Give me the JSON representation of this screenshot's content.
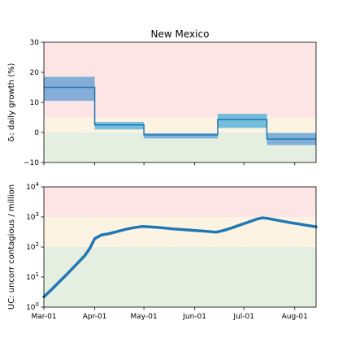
{
  "chart_data": [
    {
      "type": "line",
      "title": "New Mexico",
      "ylabel": "δᵢ: daily growth (%)",
      "ylim": [
        -10,
        30
      ],
      "yticks": [
        -10,
        0,
        10,
        20,
        30
      ],
      "yticklabels": [
        "−10",
        "0",
        "10",
        "20",
        "30"
      ],
      "xlim": [
        0,
        166
      ],
      "xticks": [
        0,
        31,
        61,
        92,
        122,
        153
      ],
      "xticklabels": [
        "Mar-01",
        "Apr-01",
        "May-01",
        "Jun-01",
        "Jul-01",
        "Aug-01"
      ],
      "show_xticklabels": false,
      "background_bands": [
        {
          "from": -10,
          "to": 0,
          "color": "#e5efe1"
        },
        {
          "from": 0,
          "to": 5,
          "color": "#fdf3e3"
        },
        {
          "from": 5,
          "to": 30,
          "color": "#fde5e5"
        }
      ],
      "series": [
        {
          "line_color": "#1f77b4",
          "band_colors": [
            "#6fa4d6",
            "#5ab4d9"
          ],
          "steps": [
            {
              "x0": 0,
              "x1": 31,
              "value": 15,
              "low": 10.5,
              "high": 18.5
            },
            {
              "x0": 31,
              "x1": 61,
              "value": 2.5,
              "low": 1.0,
              "high": 3.5
            },
            {
              "x0": 61,
              "x1": 106,
              "value": -0.8,
              "low": -2.0,
              "high": -0.3
            },
            {
              "x0": 106,
              "x1": 136,
              "value": 4.3,
              "low": 1.5,
              "high": 6.2
            },
            {
              "x0": 136,
              "x1": 166,
              "value": -2.2,
              "low": -4.2,
              "high": -0.2
            }
          ]
        }
      ]
    },
    {
      "type": "line",
      "title": "",
      "ylabel": "UC: uncorr contagious / million",
      "yscale": "log",
      "ylim": [
        1,
        10000
      ],
      "yticks": [
        1,
        10,
        100,
        1000,
        10000
      ],
      "ytick_exponents": [
        "0",
        "1",
        "2",
        "3",
        "4"
      ],
      "ytick_base": "10",
      "xlim": [
        0,
        166
      ],
      "xticks": [
        0,
        31,
        61,
        92,
        122,
        153
      ],
      "xticklabels": [
        "Mar-01",
        "Apr-01",
        "May-01",
        "Jun-01",
        "Jul-01",
        "Aug-01"
      ],
      "background_bands": [
        {
          "from": 1,
          "to": 100,
          "color": "#e5efe1"
        },
        {
          "from": 100,
          "to": 1000,
          "color": "#fdf3e3"
        },
        {
          "from": 1000,
          "to": 10000,
          "color": "#fde5e5"
        }
      ],
      "series": [
        {
          "line_color": "#1f77b4",
          "x": [
            0,
            5,
            10,
            15,
            20,
            25,
            28,
            31,
            35,
            40,
            45,
            50,
            55,
            60,
            64,
            70,
            75,
            80,
            90,
            100,
            105,
            110,
            115,
            120,
            125,
            130,
            133,
            136,
            140,
            145,
            150,
            155,
            160,
            166
          ],
          "y": [
            2.2,
            4.0,
            7.5,
            14,
            27,
            52,
            90,
            190,
            250,
            280,
            330,
            390,
            440,
            480,
            470,
            445,
            420,
            395,
            360,
            330,
            310,
            360,
            440,
            550,
            680,
            850,
            930,
            900,
            820,
            730,
            650,
            590,
            530,
            470
          ]
        }
      ]
    }
  ]
}
